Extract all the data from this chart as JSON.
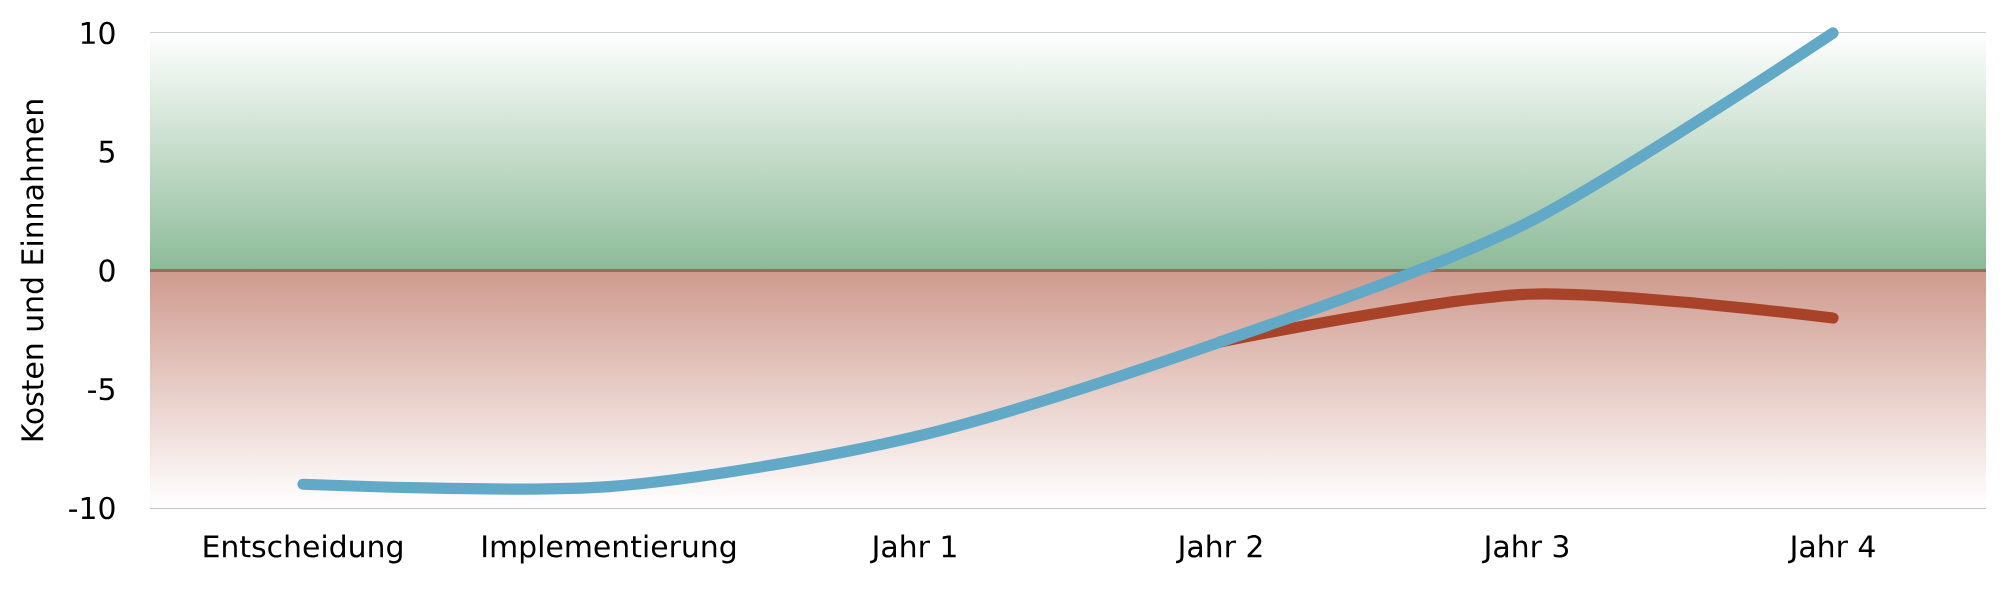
{
  "chart_data": {
    "type": "line",
    "ylabel": "Kosten und Einnahmen",
    "categories": [
      "Entscheidung",
      "Implementierung",
      "Jahr 1",
      "Jahr 2",
      "Jahr 3",
      "Jahr 4"
    ],
    "series": [
      {
        "color": "#a8432a",
        "values": [
          null,
          null,
          null,
          -3,
          -1,
          -2
        ]
      },
      {
        "color": "#62a8c7",
        "values": [
          -9,
          -9.1,
          -7,
          -3,
          2,
          10
        ]
      }
    ],
    "ylim": [
      -10,
      10
    ],
    "yticks": [
      -10,
      -5,
      0,
      5,
      10
    ],
    "grid": "y",
    "line_style": "solid",
    "marker": "none",
    "ref_lines": [
      {
        "axis": "y",
        "value": 0,
        "color": "#9a6a5a"
      }
    ],
    "bands": [
      {
        "axis": "y",
        "from": 0,
        "to": 10,
        "color": "#8dbb98"
      },
      {
        "axis": "y",
        "from": -10,
        "to": 0,
        "color": "#cf9a8e"
      }
    ]
  }
}
